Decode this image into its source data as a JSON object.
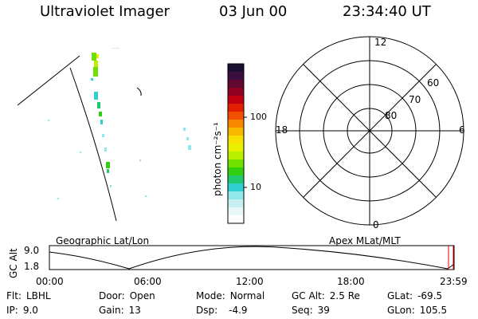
{
  "title": {
    "instrument": "Ultraviolet Imager",
    "date": "03 Jun 00",
    "time": "23:34:40 UT"
  },
  "colorbar": {
    "unit_label": "photon cm⁻²s⁻¹",
    "ticks": [
      "100",
      "10"
    ],
    "colors": [
      "#1a1030",
      "#3a1040",
      "#600830",
      "#900020",
      "#c00010",
      "#e02000",
      "#f05000",
      "#f88800",
      "#f8b800",
      "#f8e000",
      "#e8f000",
      "#b8f000",
      "#70e000",
      "#30d010",
      "#20c870",
      "#30d0d0",
      "#90e8e8",
      "#c8f0f0",
      "#e8f8f8",
      "#ffffff"
    ]
  },
  "polar_plot": {
    "top_label": "12",
    "bottom_label": "0",
    "left_label": "18",
    "right_label": "6",
    "lat_labels": [
      "80",
      "70",
      "60"
    ]
  },
  "orbit_plot": {
    "left_label": "Geographic Lat/Lon",
    "right_label": "Apex MLat/MLT",
    "y_axis_label": "GC Alt",
    "y_ticks": [
      "9.0",
      "1.8"
    ],
    "x_ticks": [
      "00:00",
      "06:00",
      "12:00",
      "18:00",
      "23:59"
    ]
  },
  "info": {
    "flt_label": "Flt:",
    "flt_value": "LBHL",
    "ip_label": "IP:",
    "ip_value": "9.0",
    "door_label": "Door:",
    "door_value": "Open",
    "gain_label": "Gain:",
    "gain_value": "13",
    "mode_label": "Mode:",
    "mode_value": "Normal",
    "dsp_label": "Dsp:",
    "dsp_value": "-4.9",
    "gcalt_label": "GC Alt:",
    "gcalt_value": "2.5 Re",
    "seq_label": "Seq:",
    "seq_value": "39",
    "glat_label": "GLat:",
    "glat_value": "-69.5",
    "glon_label": "GLon:",
    "glon_value": "105.5"
  }
}
